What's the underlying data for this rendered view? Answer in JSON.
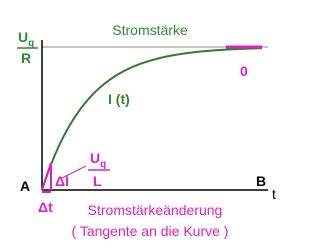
{
  "title": "Stromstärke",
  "y_label": {
    "numerator": {
      "main": "U",
      "sub": "q"
    },
    "denominator": "R"
  },
  "curve_label": "I (t)",
  "end_slope": "0",
  "origin": "A",
  "end": "B",
  "x_axis": "t",
  "delta_i": "ΔI",
  "slope": {
    "numerator": {
      "main": "U",
      "sub": "q"
    },
    "denominator": "L"
  },
  "delta_t": "Δt",
  "caption": "Stromstärkeänderung",
  "caption_note": "( Tangente an die Kurve )"
}
